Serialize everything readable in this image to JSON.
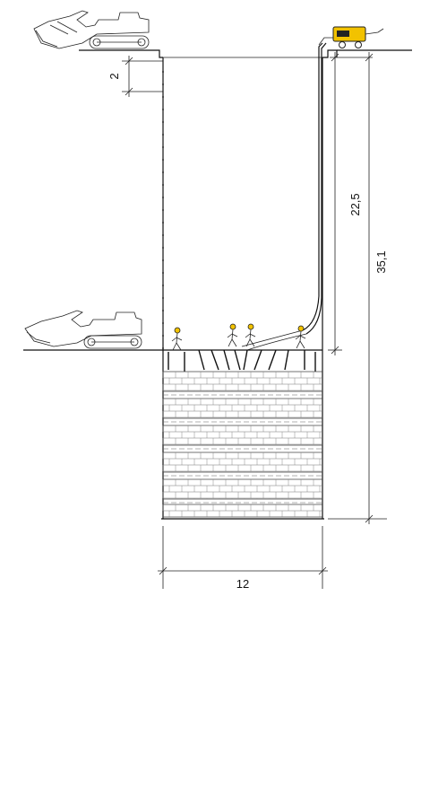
{
  "dimensions": {
    "top_step": "2",
    "excavation_depth": "22,5",
    "total_depth": "35,1",
    "shaft_width": "12"
  },
  "colors": {
    "line": "#111111",
    "compressor": "#f2c200",
    "compressor_dark": "#222222"
  },
  "icons": {
    "excavator": "excavator-icon",
    "compressor": "air-compressor-icon",
    "worker": "worker-icon"
  }
}
